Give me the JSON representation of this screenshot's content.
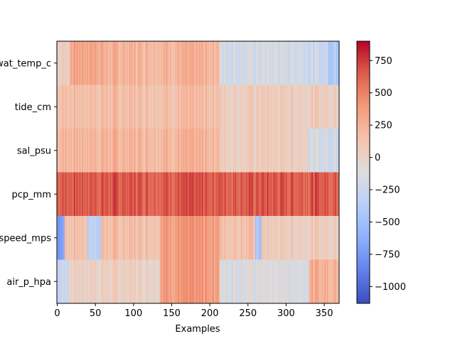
{
  "chart_data": {
    "type": "heatmap",
    "title": "",
    "xlabel": "Examples",
    "ylabel": "",
    "xlim": [
      -0.5,
      369.5
    ],
    "x_ticks": [
      0,
      50,
      100,
      150,
      200,
      250,
      300,
      350
    ],
    "x_tick_labels": [
      "0",
      "50",
      "100",
      "150",
      "200",
      "250",
      "300",
      "350"
    ],
    "rows": [
      "wat_temp_c",
      "tide_cm",
      "sal_psu",
      "pcp_mm",
      "wind_speed_mps",
      "air_p_hpa"
    ],
    "n_examples": 370,
    "colormap": "coolwarm",
    "colorbar": {
      "vmin": -1130,
      "vmax": 900,
      "ticks": [
        -1000,
        -750,
        -500,
        -250,
        0,
        250,
        500,
        750
      ],
      "tick_labels": [
        "−1000",
        "−750",
        "−500",
        "−250",
        "0",
        "250",
        "500",
        "750"
      ]
    },
    "row_profiles": {
      "wat_temp_c": [
        {
          "x": [
            0,
            17
          ],
          "v": 60
        },
        {
          "x": [
            17,
            60
          ],
          "v": 330
        },
        {
          "x": [
            60,
            213
          ],
          "v": 240
        },
        {
          "x": [
            213,
            330
          ],
          "v": -170
        },
        {
          "x": [
            330,
            355
          ],
          "v": -250
        },
        {
          "x": [
            355,
            369
          ],
          "v": -380
        }
      ],
      "tide_cm": [
        {
          "x": [
            0,
            213
          ],
          "v": 170
        },
        {
          "x": [
            213,
            369
          ],
          "v": 60
        }
      ],
      "sal_psu": [
        {
          "x": [
            0,
            213
          ],
          "v": 230
        },
        {
          "x": [
            213,
            330
          ],
          "v": 60
        },
        {
          "x": [
            330,
            369
          ],
          "v": -180
        }
      ],
      "pcp_mm": [
        {
          "x": [
            0,
            369
          ],
          "v": 660
        }
      ],
      "wind_speed_mps": [
        {
          "x": [
            0,
            10
          ],
          "v": -700
        },
        {
          "x": [
            10,
            40
          ],
          "v": 150
        },
        {
          "x": [
            40,
            58
          ],
          "v": -320
        },
        {
          "x": [
            58,
            135
          ],
          "v": 160
        },
        {
          "x": [
            135,
            213
          ],
          "v": 380
        },
        {
          "x": [
            213,
            260
          ],
          "v": 160
        },
        {
          "x": [
            260,
            268
          ],
          "v": -450
        },
        {
          "x": [
            268,
            369
          ],
          "v": 60
        }
      ],
      "air_p_hpa": [
        {
          "x": [
            0,
            15
          ],
          "v": -250
        },
        {
          "x": [
            15,
            135
          ],
          "v": 30
        },
        {
          "x": [
            135,
            213
          ],
          "v": 380
        },
        {
          "x": [
            213,
            330
          ],
          "v": -120
        },
        {
          "x": [
            330,
            369
          ],
          "v": 260
        }
      ]
    }
  }
}
